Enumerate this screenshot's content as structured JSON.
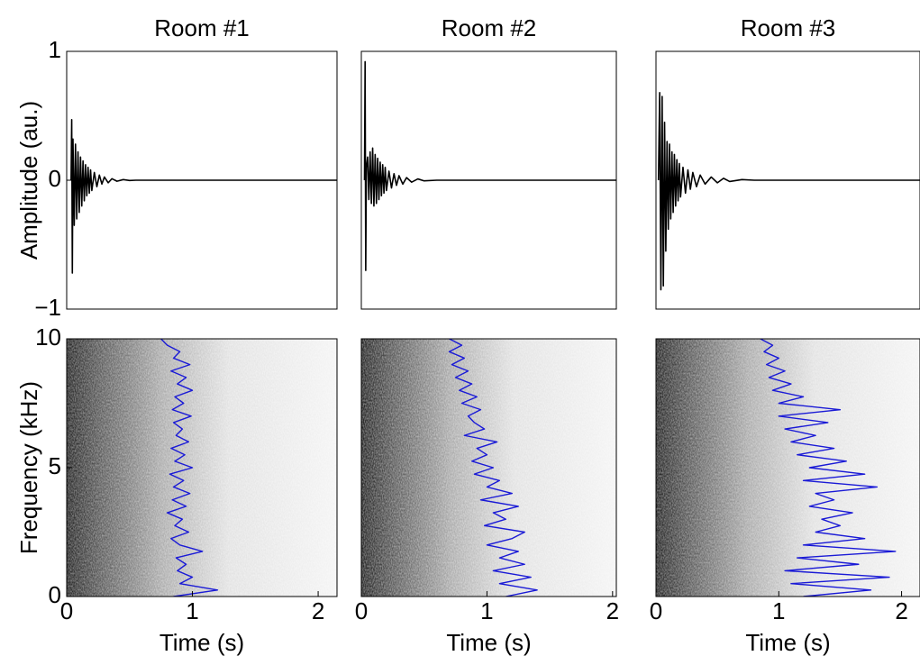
{
  "chart_data": [
    {
      "type": "line",
      "title": "Room #1",
      "ylabel": "Amplitude (au.)",
      "ylim": [
        -1,
        1
      ],
      "yticks": [
        {
          "value": -1,
          "label": "−1"
        },
        0,
        1
      ],
      "xlim": [
        0,
        2.15
      ],
      "series": [
        {
          "color": "#000000",
          "x": [
            0.035,
            0.04,
            0.045,
            0.05,
            0.06,
            0.07,
            0.08,
            0.09,
            0.1,
            0.11,
            0.12,
            0.13,
            0.14,
            0.15,
            0.16,
            0.17,
            0.18,
            0.19,
            0.2,
            0.22,
            0.24,
            0.26,
            0.28,
            0.3,
            0.33,
            0.36,
            0.4,
            0.45,
            0.5,
            0.55,
            2.15
          ],
          "values": [
            0,
            0.47,
            -0.72,
            0.32,
            -0.35,
            0.28,
            -0.3,
            0.22,
            -0.25,
            0.18,
            -0.2,
            0.15,
            -0.16,
            0.12,
            -0.12,
            0.1,
            -0.1,
            0.08,
            -0.08,
            0.06,
            -0.05,
            0.04,
            -0.03,
            0.025,
            -0.02,
            0.012,
            -0.008,
            0.005,
            -0.002,
            0,
            0
          ]
        }
      ]
    },
    {
      "type": "line",
      "title": "Room #2",
      "ylim": [
        -1,
        1
      ],
      "xlim": [
        0,
        2.03
      ],
      "series": [
        {
          "color": "#000000",
          "x": [
            0.025,
            0.03,
            0.035,
            0.04,
            0.05,
            0.06,
            0.07,
            0.08,
            0.09,
            0.1,
            0.11,
            0.12,
            0.13,
            0.14,
            0.15,
            0.16,
            0.17,
            0.18,
            0.19,
            0.2,
            0.22,
            0.24,
            0.26,
            0.28,
            0.3,
            0.33,
            0.36,
            0.4,
            0.45,
            0.5,
            0.6,
            2.15
          ],
          "values": [
            0,
            0.92,
            -0.7,
            0.1,
            0.18,
            -0.15,
            0.22,
            -0.18,
            0.25,
            -0.2,
            0.2,
            -0.18,
            0.17,
            -0.15,
            0.14,
            -0.12,
            0.12,
            -0.1,
            0.1,
            -0.08,
            0.07,
            -0.06,
            0.05,
            -0.04,
            0.035,
            -0.03,
            0.02,
            -0.015,
            0.01,
            -0.005,
            0,
            0
          ]
        }
      ]
    },
    {
      "type": "line",
      "title": "Room #3",
      "ylim": [
        -1,
        1
      ],
      "xlim": [
        0,
        2.15
      ],
      "series": [
        {
          "color": "#000000",
          "x": [
            0.02,
            0.03,
            0.04,
            0.05,
            0.06,
            0.07,
            0.08,
            0.09,
            0.1,
            0.11,
            0.12,
            0.13,
            0.14,
            0.15,
            0.16,
            0.17,
            0.18,
            0.19,
            0.2,
            0.22,
            0.24,
            0.26,
            0.28,
            0.3,
            0.33,
            0.36,
            0.4,
            0.45,
            0.5,
            0.55,
            0.6,
            0.7,
            0.8,
            2.15
          ],
          "values": [
            0,
            0.68,
            -0.85,
            0.65,
            -0.82,
            0.45,
            -0.55,
            0.3,
            -0.38,
            0.28,
            -0.3,
            0.22,
            -0.25,
            0.2,
            -0.2,
            0.16,
            -0.16,
            0.13,
            -0.13,
            0.1,
            -0.1,
            0.08,
            -0.07,
            0.06,
            -0.05,
            0.04,
            -0.03,
            0.025,
            -0.02,
            0.015,
            -0.01,
            0.005,
            0,
            0
          ]
        }
      ]
    },
    {
      "type": "line",
      "ylabel": "Frequency (kHz)",
      "xlabel": "Time (s)",
      "ylim": [
        0,
        10
      ],
      "yticks": [
        0,
        5,
        10
      ],
      "xlim": [
        0,
        2.15
      ],
      "xticks": [
        0,
        1,
        2
      ],
      "series": [
        {
          "color": "#1a1ad6",
          "x": [
            0.85,
            1.2,
            0.9,
            1.0,
            0.88,
            0.95,
            0.87,
            1.08,
            0.9,
            0.83,
            0.97,
            0.86,
            0.92,
            0.8,
            0.95,
            0.84,
            0.98,
            0.85,
            0.93,
            0.82,
            1.0,
            0.86,
            0.94,
            0.83,
            0.97,
            0.87,
            0.92,
            0.85,
            0.99,
            0.84,
            0.93,
            0.86,
            1.0,
            0.88,
            0.95,
            0.83,
            0.98,
            0.85,
            0.9,
            0.8,
            0.75
          ],
          "values": [
            0,
            0.25,
            0.5,
            0.75,
            1,
            1.25,
            1.5,
            1.75,
            2,
            2.25,
            2.5,
            2.75,
            3,
            3.25,
            3.5,
            3.75,
            4,
            4.25,
            4.5,
            4.75,
            5,
            5.25,
            5.5,
            5.75,
            6,
            6.25,
            6.5,
            6.75,
            7,
            7.25,
            7.5,
            7.75,
            8,
            8.25,
            8.5,
            8.75,
            9,
            9.25,
            9.5,
            9.75,
            10
          ]
        }
      ]
    },
    {
      "type": "line",
      "xlabel": "Time (s)",
      "ylim": [
        0,
        10
      ],
      "xlim": [
        0,
        2.03
      ],
      "xticks": [
        0,
        1,
        2
      ],
      "series": [
        {
          "color": "#1a1ad6",
          "x": [
            1.15,
            1.4,
            1.1,
            1.35,
            1.05,
            1.3,
            1.1,
            1.25,
            1.0,
            1.2,
            1.3,
            0.98,
            1.15,
            1.05,
            1.25,
            0.95,
            1.2,
            1.0,
            1.1,
            0.9,
            1.05,
            0.88,
            1.0,
            0.92,
            1.08,
            0.82,
            0.98,
            0.9,
            0.85,
            0.95,
            0.8,
            0.92,
            0.78,
            0.88,
            0.75,
            0.85,
            0.72,
            0.82,
            0.7,
            0.8,
            0.7
          ],
          "values": [
            0,
            0.25,
            0.5,
            0.75,
            1,
            1.25,
            1.5,
            1.75,
            2,
            2.25,
            2.5,
            2.75,
            3,
            3.25,
            3.5,
            3.75,
            4,
            4.25,
            4.5,
            4.75,
            5,
            5.25,
            5.5,
            5.75,
            6,
            6.25,
            6.5,
            6.75,
            7,
            7.25,
            7.5,
            7.75,
            8,
            8.25,
            8.5,
            8.75,
            9,
            9.25,
            9.5,
            9.75,
            10
          ]
        }
      ]
    },
    {
      "type": "line",
      "xlabel": "Time (s)",
      "ylim": [
        0,
        10
      ],
      "xlim": [
        0,
        2.15
      ],
      "xticks": [
        0,
        1,
        2
      ],
      "series": [
        {
          "color": "#1a1ad6",
          "x": [
            1.2,
            1.75,
            1.1,
            1.9,
            1.05,
            1.65,
            1.15,
            1.95,
            1.2,
            1.7,
            1.3,
            1.5,
            1.35,
            1.6,
            1.25,
            1.45,
            1.3,
            1.8,
            1.2,
            1.7,
            1.25,
            1.55,
            1.15,
            1.45,
            1.1,
            1.3,
            1.05,
            1.4,
            1.0,
            1.5,
            1.0,
            1.2,
            0.95,
            1.1,
            0.92,
            1.05,
            0.9,
            1.0,
            0.88,
            0.95,
            0.85
          ],
          "values": [
            0,
            0.25,
            0.5,
            0.75,
            1,
            1.25,
            1.5,
            1.75,
            2,
            2.25,
            2.5,
            2.75,
            3,
            3.25,
            3.5,
            3.75,
            4,
            4.25,
            4.5,
            4.75,
            5,
            5.25,
            5.5,
            5.75,
            6,
            6.25,
            6.5,
            6.75,
            7,
            7.25,
            7.5,
            7.75,
            8,
            8.25,
            8.5,
            8.75,
            9,
            9.25,
            9.5,
            9.75,
            10
          ]
        }
      ]
    }
  ]
}
